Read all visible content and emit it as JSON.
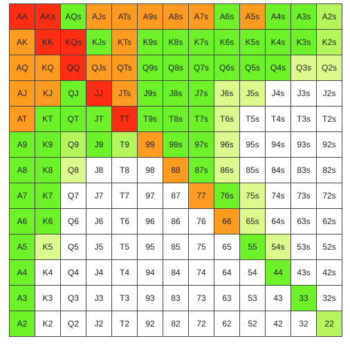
{
  "colors": {
    "R": "#ff2d13",
    "O": "#ff9b1f",
    "G": "#6cf226",
    "L": "#b3f55a",
    "Y": "#dcf98e",
    "W": "#ffffff"
  },
  "rows": [
    [
      "AA",
      "AKs",
      "AQs",
      "AJs",
      "ATs",
      "A9s",
      "A8s",
      "A7s",
      "A6s",
      "A5s",
      "A4s",
      "A3s",
      "A2s"
    ],
    [
      "AK",
      "KK",
      "KQs",
      "KJs",
      "KTs",
      "K9s",
      "K8s",
      "K7s",
      "K6s",
      "K5s",
      "K4s",
      "K3s",
      "K2s"
    ],
    [
      "AQ",
      "KQ",
      "QQ",
      "QJs",
      "QTs",
      "Q9s",
      "Q8s",
      "Q7s",
      "Q6s",
      "Q5s",
      "Q4s",
      "Q3s",
      "Q2s"
    ],
    [
      "AJ",
      "KJ",
      "QJ",
      "JJ",
      "JTs",
      "J9s",
      "J8s",
      "J7s",
      "J6s",
      "J5s",
      "J4s",
      "J3s",
      "J2s"
    ],
    [
      "AT",
      "KT",
      "QT",
      "JT",
      "TT",
      "T9s",
      "T8s",
      "T7s",
      "T6s",
      "T5s",
      "T4s",
      "T3s",
      "T2s"
    ],
    [
      "A9",
      "K9",
      "Q9",
      "J9",
      "T9",
      "99",
      "98s",
      "97s",
      "96s",
      "95s",
      "94s",
      "93s",
      "92s"
    ],
    [
      "A8",
      "K8",
      "Q8",
      "J8",
      "T8",
      "98",
      "88",
      "87s",
      "86s",
      "85s",
      "84s",
      "83s",
      "82s"
    ],
    [
      "A7",
      "K7",
      "Q7",
      "J7",
      "T7",
      "97",
      "87",
      "77",
      "76s",
      "75s",
      "74s",
      "73s",
      "72s"
    ],
    [
      "A6",
      "K6",
      "Q6",
      "J6",
      "T6",
      "96",
      "86",
      "76",
      "66",
      "65s",
      "64s",
      "63s",
      "62s"
    ],
    [
      "A5",
      "K5",
      "Q5",
      "J5",
      "T5",
      "95",
      "85",
      "75",
      "65",
      "55",
      "54s",
      "53s",
      "52s"
    ],
    [
      "A4",
      "K4",
      "Q4",
      "J4",
      "T4",
      "94",
      "84",
      "74",
      "64",
      "54",
      "44",
      "43s",
      "42s"
    ],
    [
      "A3",
      "K3",
      "Q3",
      "J3",
      "T3",
      "93",
      "83",
      "73",
      "63",
      "53",
      "43",
      "33",
      "32s"
    ],
    [
      "A2",
      "K2",
      "Q2",
      "J2",
      "T2",
      "92",
      "82",
      "72",
      "62",
      "52",
      "42",
      "32",
      "22"
    ]
  ],
  "cell_colors": [
    "RRGOOOOOGOGGL",
    "ORRGOGGGGGGGL",
    "OOROOGGGGGGYY",
    "OOGROGGGYYWWW",
    "OGGGRGGGYWWWW",
    "GGLGLOGGYWWWW",
    "GGYWWWOGYWWWW",
    "GGWWWWWOGYWWW",
    "GGWWWWWWOYWWW",
    "GYWWWWWWWGYWW",
    "GWWWWWWWWWGWW",
    "GWWWWWWWWWWGW",
    "GWWWWWWWWWWWL"
  ]
}
